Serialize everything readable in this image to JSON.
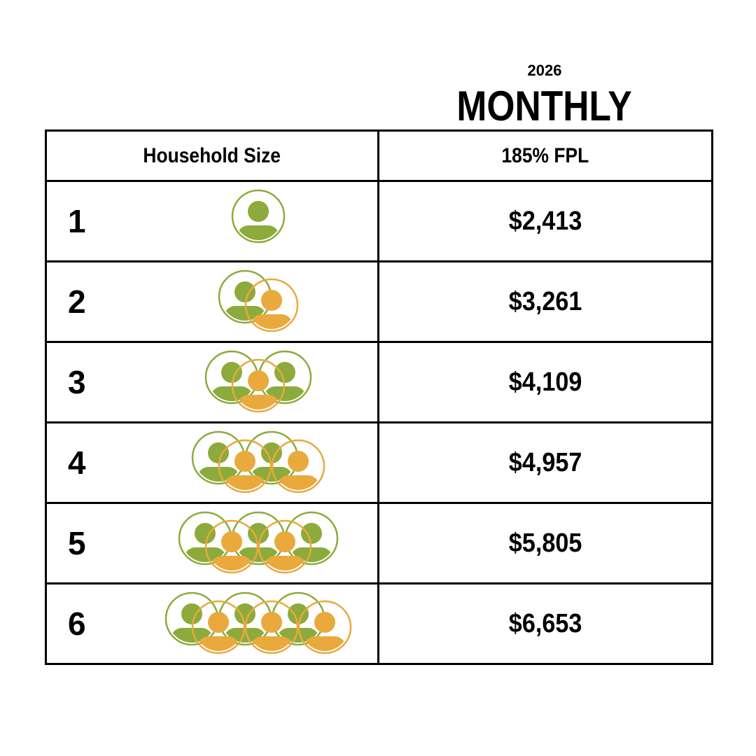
{
  "header": {
    "year": "2026",
    "title": "MONTHLY"
  },
  "chart_data": {
    "type": "table",
    "columns": [
      "Household Size",
      "185% FPL"
    ],
    "rows": [
      {
        "household_size": "1",
        "monthly_185_fpl": "$2,413",
        "people": 1
      },
      {
        "household_size": "2",
        "monthly_185_fpl": "$3,261",
        "people": 2
      },
      {
        "household_size": "3",
        "monthly_185_fpl": "$4,109",
        "people": 3
      },
      {
        "household_size": "4",
        "monthly_185_fpl": "$4,957",
        "people": 4
      },
      {
        "household_size": "5",
        "monthly_185_fpl": "$5,805",
        "people": 5
      },
      {
        "household_size": "6",
        "monthly_185_fpl": "$6,653",
        "people": 6
      }
    ]
  },
  "icons": {
    "person_icon": "person-in-circle-icon",
    "colors": {
      "green": "#8cab3c",
      "orange": "#e9a93c"
    }
  }
}
